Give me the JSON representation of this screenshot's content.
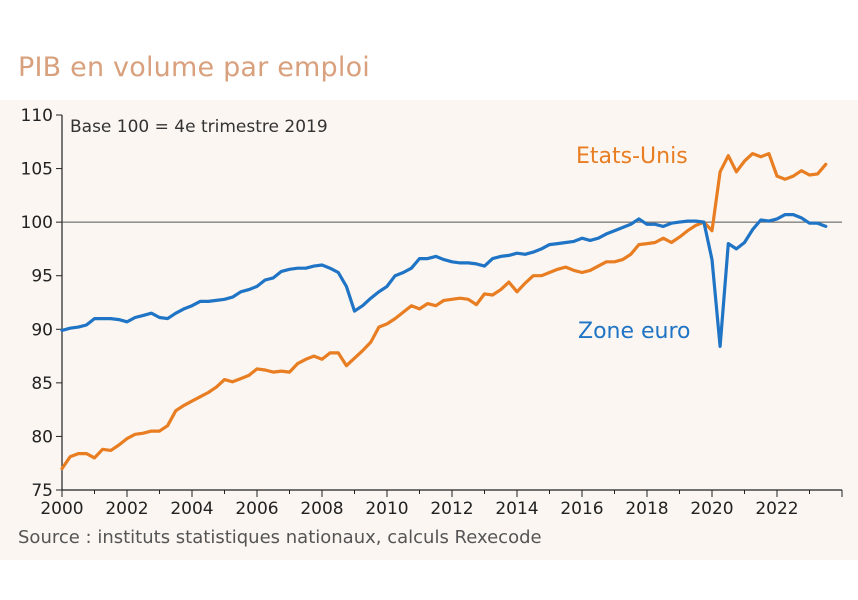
{
  "chart_data": {
    "type": "line",
    "title": "PIB en volume par emploi",
    "subtitle": "Base 100 = 4e trimestre 2019",
    "source": "Source :  instituts statistiques nationaux, calculs Rexecode",
    "xlabel": "",
    "ylabel": "",
    "xlim": [
      2000,
      2024
    ],
    "ylim": [
      75,
      110
    ],
    "x_ticks": [
      "2000",
      "2002",
      "2004",
      "2006",
      "2008",
      "2010",
      "2012",
      "2014",
      "2016",
      "2018",
      "2020",
      "2022"
    ],
    "y_ticks": [
      "75",
      "80",
      "85",
      "90",
      "95",
      "100",
      "105",
      "110"
    ],
    "reference_line": 100,
    "grid": false,
    "series": [
      {
        "name": "Etats-Unis",
        "color": "#e87d22",
        "points": [
          [
            2000.0,
            77.0
          ],
          [
            2000.25,
            78.1
          ],
          [
            2000.5,
            78.4
          ],
          [
            2000.75,
            78.4
          ],
          [
            2001.0,
            78.0
          ],
          [
            2001.25,
            78.8
          ],
          [
            2001.5,
            78.7
          ],
          [
            2001.75,
            79.2
          ],
          [
            2002.0,
            79.8
          ],
          [
            2002.25,
            80.2
          ],
          [
            2002.5,
            80.3
          ],
          [
            2002.75,
            80.5
          ],
          [
            2003.0,
            80.5
          ],
          [
            2003.25,
            81.0
          ],
          [
            2003.5,
            82.4
          ],
          [
            2003.75,
            82.9
          ],
          [
            2004.0,
            83.3
          ],
          [
            2004.25,
            83.7
          ],
          [
            2004.5,
            84.1
          ],
          [
            2004.75,
            84.6
          ],
          [
            2005.0,
            85.3
          ],
          [
            2005.25,
            85.1
          ],
          [
            2005.5,
            85.4
          ],
          [
            2005.75,
            85.7
          ],
          [
            2006.0,
            86.3
          ],
          [
            2006.25,
            86.2
          ],
          [
            2006.5,
            86.0
          ],
          [
            2006.75,
            86.1
          ],
          [
            2007.0,
            86.0
          ],
          [
            2007.25,
            86.8
          ],
          [
            2007.5,
            87.2
          ],
          [
            2007.75,
            87.5
          ],
          [
            2008.0,
            87.2
          ],
          [
            2008.25,
            87.8
          ],
          [
            2008.5,
            87.8
          ],
          [
            2008.75,
            86.6
          ],
          [
            2009.0,
            87.3
          ],
          [
            2009.25,
            88.0
          ],
          [
            2009.5,
            88.8
          ],
          [
            2009.75,
            90.2
          ],
          [
            2010.0,
            90.5
          ],
          [
            2010.25,
            91.0
          ],
          [
            2010.5,
            91.6
          ],
          [
            2010.75,
            92.2
          ],
          [
            2011.0,
            91.9
          ],
          [
            2011.25,
            92.4
          ],
          [
            2011.5,
            92.2
          ],
          [
            2011.75,
            92.7
          ],
          [
            2012.0,
            92.8
          ],
          [
            2012.25,
            92.9
          ],
          [
            2012.5,
            92.8
          ],
          [
            2012.75,
            92.3
          ],
          [
            2013.0,
            93.3
          ],
          [
            2013.25,
            93.2
          ],
          [
            2013.5,
            93.7
          ],
          [
            2013.75,
            94.4
          ],
          [
            2014.0,
            93.5
          ],
          [
            2014.25,
            94.3
          ],
          [
            2014.5,
            95.0
          ],
          [
            2014.75,
            95.0
          ],
          [
            2015.0,
            95.3
          ],
          [
            2015.25,
            95.6
          ],
          [
            2015.5,
            95.8
          ],
          [
            2015.75,
            95.5
          ],
          [
            2016.0,
            95.3
          ],
          [
            2016.25,
            95.5
          ],
          [
            2016.5,
            95.9
          ],
          [
            2016.75,
            96.3
          ],
          [
            2017.0,
            96.3
          ],
          [
            2017.25,
            96.5
          ],
          [
            2017.5,
            97.0
          ],
          [
            2017.75,
            97.9
          ],
          [
            2018.0,
            98.0
          ],
          [
            2018.25,
            98.1
          ],
          [
            2018.5,
            98.5
          ],
          [
            2018.75,
            98.1
          ],
          [
            2019.0,
            98.6
          ],
          [
            2019.25,
            99.2
          ],
          [
            2019.5,
            99.7
          ],
          [
            2019.75,
            100.0
          ],
          [
            2020.0,
            99.2
          ],
          [
            2020.25,
            104.7
          ],
          [
            2020.5,
            106.2
          ],
          [
            2020.75,
            104.7
          ],
          [
            2021.0,
            105.7
          ],
          [
            2021.25,
            106.4
          ],
          [
            2021.5,
            106.1
          ],
          [
            2021.75,
            106.4
          ],
          [
            2022.0,
            104.3
          ],
          [
            2022.25,
            104.0
          ],
          [
            2022.5,
            104.3
          ],
          [
            2022.75,
            104.8
          ],
          [
            2023.0,
            104.4
          ],
          [
            2023.25,
            104.5
          ],
          [
            2023.5,
            105.4
          ]
        ]
      },
      {
        "name": "Zone euro",
        "color": "#1f74c5",
        "points": [
          [
            2000.0,
            89.9
          ],
          [
            2000.25,
            90.1
          ],
          [
            2000.5,
            90.2
          ],
          [
            2000.75,
            90.4
          ],
          [
            2001.0,
            91.0
          ],
          [
            2001.25,
            91.0
          ],
          [
            2001.5,
            91.0
          ],
          [
            2001.75,
            90.9
          ],
          [
            2002.0,
            90.7
          ],
          [
            2002.25,
            91.1
          ],
          [
            2002.5,
            91.3
          ],
          [
            2002.75,
            91.5
          ],
          [
            2003.0,
            91.1
          ],
          [
            2003.25,
            91.0
          ],
          [
            2003.5,
            91.5
          ],
          [
            2003.75,
            91.9
          ],
          [
            2004.0,
            92.2
          ],
          [
            2004.25,
            92.6
          ],
          [
            2004.5,
            92.6
          ],
          [
            2004.75,
            92.7
          ],
          [
            2005.0,
            92.8
          ],
          [
            2005.25,
            93.0
          ],
          [
            2005.5,
            93.5
          ],
          [
            2005.75,
            93.7
          ],
          [
            2006.0,
            94.0
          ],
          [
            2006.25,
            94.6
          ],
          [
            2006.5,
            94.8
          ],
          [
            2006.75,
            95.4
          ],
          [
            2007.0,
            95.6
          ],
          [
            2007.25,
            95.7
          ],
          [
            2007.5,
            95.7
          ],
          [
            2007.75,
            95.9
          ],
          [
            2008.0,
            96.0
          ],
          [
            2008.25,
            95.7
          ],
          [
            2008.5,
            95.3
          ],
          [
            2008.75,
            94.0
          ],
          [
            2009.0,
            91.7
          ],
          [
            2009.25,
            92.2
          ],
          [
            2009.5,
            92.9
          ],
          [
            2009.75,
            93.5
          ],
          [
            2010.0,
            94.0
          ],
          [
            2010.25,
            95.0
          ],
          [
            2010.5,
            95.3
          ],
          [
            2010.75,
            95.7
          ],
          [
            2011.0,
            96.6
          ],
          [
            2011.25,
            96.6
          ],
          [
            2011.5,
            96.8
          ],
          [
            2011.75,
            96.5
          ],
          [
            2012.0,
            96.3
          ],
          [
            2012.25,
            96.2
          ],
          [
            2012.5,
            96.2
          ],
          [
            2012.75,
            96.1
          ],
          [
            2013.0,
            95.9
          ],
          [
            2013.25,
            96.6
          ],
          [
            2013.5,
            96.8
          ],
          [
            2013.75,
            96.9
          ],
          [
            2014.0,
            97.1
          ],
          [
            2014.25,
            97.0
          ],
          [
            2014.5,
            97.2
          ],
          [
            2014.75,
            97.5
          ],
          [
            2015.0,
            97.9
          ],
          [
            2015.25,
            98.0
          ],
          [
            2015.5,
            98.1
          ],
          [
            2015.75,
            98.2
          ],
          [
            2016.0,
            98.5
          ],
          [
            2016.25,
            98.3
          ],
          [
            2016.5,
            98.5
          ],
          [
            2016.75,
            98.9
          ],
          [
            2017.0,
            99.2
          ],
          [
            2017.25,
            99.5
          ],
          [
            2017.5,
            99.8
          ],
          [
            2017.75,
            100.3
          ],
          [
            2018.0,
            99.8
          ],
          [
            2018.25,
            99.8
          ],
          [
            2018.5,
            99.6
          ],
          [
            2018.75,
            99.9
          ],
          [
            2019.0,
            100.0
          ],
          [
            2019.25,
            100.1
          ],
          [
            2019.5,
            100.1
          ],
          [
            2019.75,
            100.0
          ],
          [
            2020.0,
            96.5
          ],
          [
            2020.25,
            88.4
          ],
          [
            2020.5,
            98.0
          ],
          [
            2020.75,
            97.5
          ],
          [
            2021.0,
            98.1
          ],
          [
            2021.25,
            99.3
          ],
          [
            2021.5,
            100.2
          ],
          [
            2021.75,
            100.1
          ],
          [
            2022.0,
            100.3
          ],
          [
            2022.25,
            100.7
          ],
          [
            2022.5,
            100.7
          ],
          [
            2022.75,
            100.4
          ],
          [
            2023.0,
            99.9
          ],
          [
            2023.25,
            99.9
          ],
          [
            2023.5,
            99.6
          ]
        ]
      }
    ]
  }
}
